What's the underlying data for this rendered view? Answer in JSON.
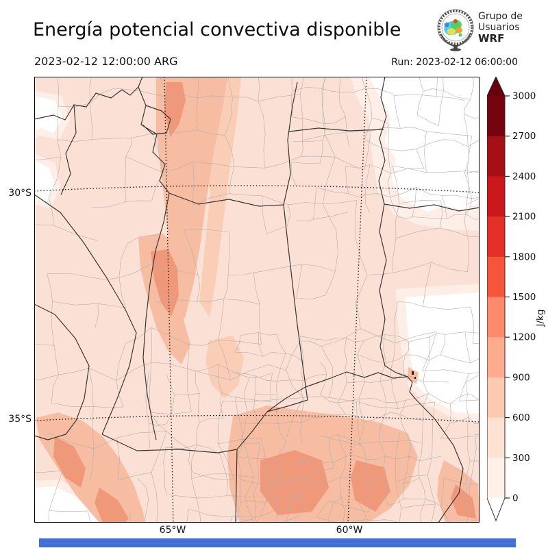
{
  "header": {
    "title": "Energía potencial convectiva disponible",
    "valid_time": "2023-02-12 12:00:00 ARG",
    "run_label": "Run: 2023-02-12 06:00:00",
    "logo": {
      "line1": "Grupo de",
      "line2": "Usuarios",
      "line3": "WRF"
    }
  },
  "map": {
    "lat_ticks": [
      {
        "label": "30°S"
      },
      {
        "label": "35°S"
      }
    ],
    "lon_ticks": [
      {
        "label": "65°W"
      },
      {
        "label": "60°W"
      }
    ],
    "fill_colors": {
      "background_300_600": "#fbe1d5",
      "band_0_300": "#fdefe8",
      "band_under_0": "#ffffff",
      "band_600_900": "#f7bda2",
      "band_900_1200": "#f0997a"
    },
    "boundary_colors": {
      "province": "#3b3631",
      "department": "#b6adaa",
      "gridline": "#151515"
    }
  },
  "colorbar": {
    "unit": "J/kg",
    "ticks": [
      3000,
      2700,
      2400,
      2100,
      1800,
      1500,
      1200,
      900,
      600,
      300,
      0
    ],
    "bands_top_to_bottom": [
      {
        "range": "2700-3000",
        "color": "#75040f"
      },
      {
        "range": "2400-2700",
        "color": "#a50f15"
      },
      {
        "range": "2100-2400",
        "color": "#cb181d"
      },
      {
        "range": "1800-2100",
        "color": "#e32f27"
      },
      {
        "range": "1500-1800",
        "color": "#f6553c"
      },
      {
        "range": "1200-1500",
        "color": "#fc8a6b"
      },
      {
        "range": "900-1200",
        "color": "#fcab8f"
      },
      {
        "range": "600-900",
        "color": "#fcc9b1"
      },
      {
        "range": "300-600",
        "color": "#fde2d4"
      },
      {
        "range": "0-300",
        "color": "#fff0e8"
      }
    ],
    "over_color": "#67000d",
    "under_color": "#ffffff"
  },
  "footer_bar_color": "#4170d6"
}
